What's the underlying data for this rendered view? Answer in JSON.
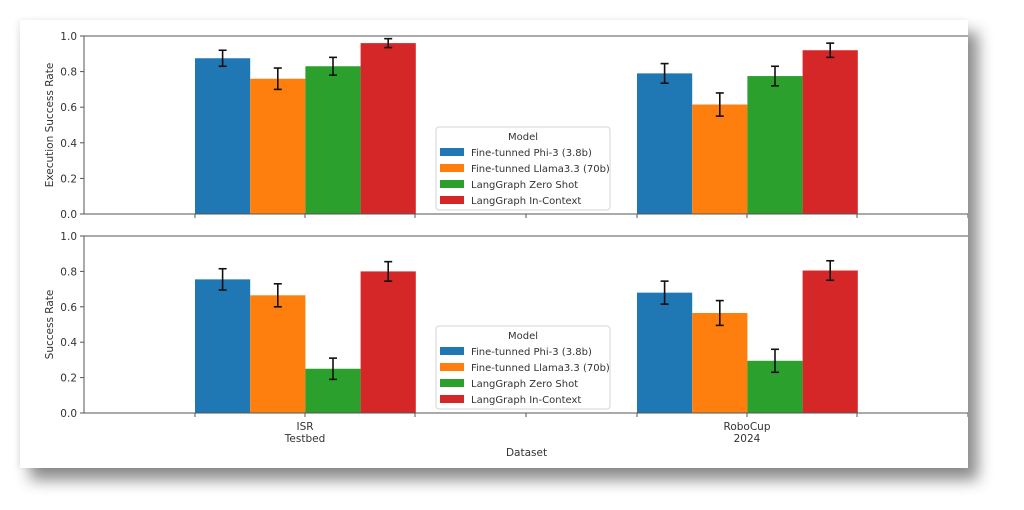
{
  "chart_data": [
    {
      "type": "bar",
      "title": "",
      "xlabel": "",
      "ylabel": "Execution Success Rate",
      "ylim": [
        0,
        1.0
      ],
      "yticks": [
        "0.0",
        "0.2",
        "0.4",
        "0.6",
        "0.8",
        "1.0"
      ],
      "categories": [
        "ISR\nTestbed",
        "RoboCup\n2024"
      ],
      "grid": false,
      "legend": {
        "title": "Model",
        "placement": "center-bottom"
      },
      "series": [
        {
          "name": "Fine-tunned Phi-3 (3.8b)",
          "color": "#1f77b4",
          "values": [
            0.875,
            0.79
          ],
          "errors": [
            0.045,
            0.055
          ]
        },
        {
          "name": "Fine-tunned Llama3.3 (70b)",
          "color": "#ff7f0e",
          "values": [
            0.76,
            0.615
          ],
          "errors": [
            0.06,
            0.065
          ]
        },
        {
          "name": "LangGraph Zero Shot",
          "color": "#2ca02c",
          "values": [
            0.83,
            0.775
          ],
          "errors": [
            0.05,
            0.055
          ]
        },
        {
          "name": "LangGraph In-Context",
          "color": "#d62728",
          "values": [
            0.96,
            0.92
          ],
          "errors": [
            0.025,
            0.04
          ]
        }
      ]
    },
    {
      "type": "bar",
      "title": "",
      "xlabel": "Dataset",
      "ylabel": "Success Rate",
      "ylim": [
        0,
        1.0
      ],
      "yticks": [
        "0.0",
        "0.2",
        "0.4",
        "0.6",
        "0.8",
        "1.0"
      ],
      "categories": [
        "ISR\nTestbed",
        "RoboCup\n2024"
      ],
      "grid": false,
      "legend": {
        "title": "Model",
        "placement": "center-bottom"
      },
      "series": [
        {
          "name": "Fine-tunned Phi-3 (3.8b)",
          "color": "#1f77b4",
          "values": [
            0.755,
            0.68
          ],
          "errors": [
            0.06,
            0.065
          ]
        },
        {
          "name": "Fine-tunned Llama3.3 (70b)",
          "color": "#ff7f0e",
          "values": [
            0.665,
            0.565
          ],
          "errors": [
            0.065,
            0.07
          ]
        },
        {
          "name": "LangGraph Zero Shot",
          "color": "#2ca02c",
          "values": [
            0.25,
            0.295
          ],
          "errors": [
            0.06,
            0.065
          ]
        },
        {
          "name": "LangGraph In-Context",
          "color": "#d62728",
          "values": [
            0.8,
            0.805
          ],
          "errors": [
            0.055,
            0.055
          ]
        }
      ]
    }
  ]
}
